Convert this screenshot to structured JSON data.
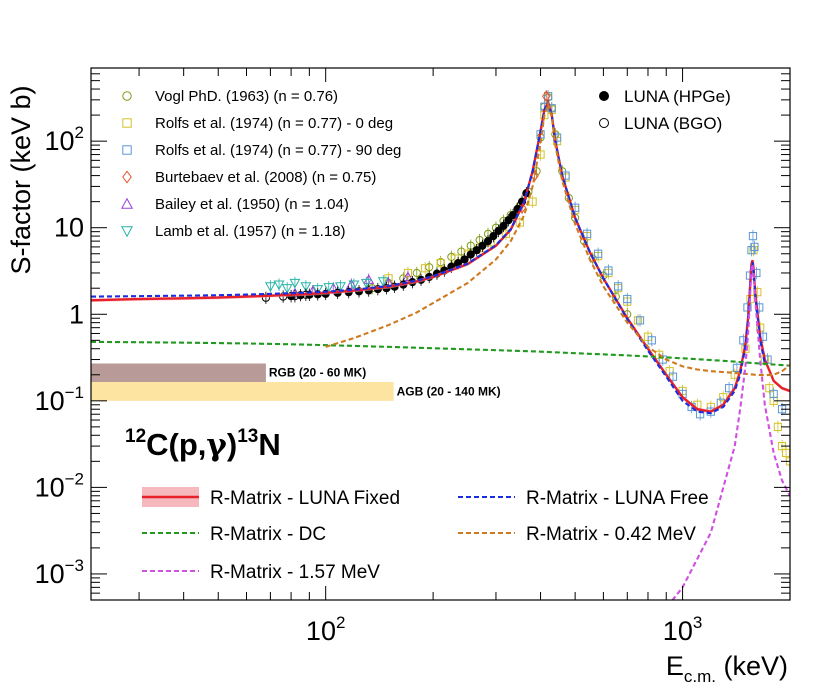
{
  "chart_data": {
    "type": "scatter",
    "title": "",
    "xlabel": "E",
    "xlabel_sub": "c.m.",
    "xlabel_unit": "(keV)",
    "ylabel": "S-factor (keV b)",
    "x_scale": "log",
    "y_scale": "log",
    "xlim": [
      22,
      2000
    ],
    "ylim": [
      0.0005,
      700
    ],
    "grid": false,
    "x_tick_labels": [
      {
        "value": 100,
        "base": "10",
        "exp": "2"
      },
      {
        "value": 1000,
        "base": "10",
        "exp": "3"
      }
    ],
    "y_tick_labels": [
      {
        "value": 0.001,
        "base": "10",
        "exp": "−3"
      },
      {
        "value": 0.01,
        "base": "10",
        "exp": "−2"
      },
      {
        "value": 0.1,
        "base": "10",
        "exp": "−1"
      },
      {
        "value": 1,
        "base": "1",
        "exp": ""
      },
      {
        "value": 10,
        "base": "10",
        "exp": ""
      },
      {
        "value": 100,
        "base": "10",
        "exp": "2"
      }
    ],
    "annotation": {
      "reaction_mass": "12",
      "reaction_left": "C(p,",
      "reaction_gamma": "γ",
      "reaction_right": ")",
      "product_mass": "13",
      "product": "N"
    },
    "bands": [
      {
        "name": "RGB (20 - 60 MK)",
        "x": [
          22,
          68
        ],
        "y": [
          0.165,
          0.27
        ],
        "color": "#b89a98"
      },
      {
        "name": "AGB (20 - 140 MK)",
        "x": [
          22,
          155
        ],
        "y": [
          0.1,
          0.165
        ],
        "color": "#fde4a1"
      }
    ],
    "legend_data": [
      {
        "label": "Vogl PhD. (1963) (n = 0.76)",
        "marker": "circle-open",
        "color": "#7d9b17"
      },
      {
        "label": "Rolfs et al. (1974) (n = 0.77) - 0 deg",
        "marker": "square-open",
        "color": "#d4c227"
      },
      {
        "label": "Rolfs et al. (1974) (n = 0.77) - 90 deg",
        "marker": "square-open",
        "color": "#5b97d6"
      },
      {
        "label": "Burtebaev et al. (2008) (n = 0.75)",
        "marker": "diamond-open",
        "color": "#e8532a"
      },
      {
        "label": "Bailey et al. (1950) (n = 1.04)",
        "marker": "triangle-up-open",
        "color": "#9a40d8"
      },
      {
        "label": "Lamb et al. (1957) (n = 1.18)",
        "marker": "triangle-down-open",
        "color": "#27b3a6"
      }
    ],
    "legend_luna": [
      {
        "label": "LUNA (HPGe)",
        "marker": "circle-filled",
        "color": "#000000"
      },
      {
        "label": "LUNA (BGO)",
        "marker": "circle-open",
        "color": "#000000"
      }
    ],
    "legend_fits": [
      {
        "label": "R-Matrix - LUNA Fixed",
        "style": "solid",
        "color": "#e8202a",
        "band_color": "#f5b8bc"
      },
      {
        "label": "R-Matrix - LUNA Free",
        "style": "dashed",
        "color": "#1a2ee0"
      },
      {
        "label": "R-Matrix - DC",
        "style": "dashed",
        "color": "#1f9a1f"
      },
      {
        "label": "R-Matrix - 0.42 MeV",
        "style": "dashed",
        "color": "#cf7a1f"
      },
      {
        "label": "R-Matrix - 1.57 MeV",
        "style": "dashed",
        "color": "#d050e0"
      }
    ],
    "series": [
      {
        "name": "R-Matrix - LUNA Fixed",
        "color": "#e8202a",
        "style": "solid",
        "x": [
          22,
          30,
          40,
          50,
          60,
          70,
          80,
          90,
          100,
          120,
          150,
          180,
          200,
          250,
          300,
          330,
          360,
          380,
          400,
          410,
          420,
          430,
          440,
          460,
          500,
          550,
          600,
          700,
          800,
          900,
          1000,
          1100,
          1200,
          1300,
          1400,
          1450,
          1500,
          1530,
          1550,
          1560,
          1570,
          1580,
          1600,
          1650,
          1700,
          1800,
          1900,
          2000
        ],
        "y": [
          1.45,
          1.5,
          1.53,
          1.56,
          1.6,
          1.64,
          1.68,
          1.72,
          1.77,
          1.88,
          2.08,
          2.4,
          2.7,
          3.8,
          6.2,
          9.5,
          20,
          45,
          130,
          230,
          280,
          200,
          100,
          40,
          13,
          5.2,
          2.6,
          0.9,
          0.4,
          0.2,
          0.11,
          0.08,
          0.075,
          0.09,
          0.14,
          0.22,
          0.45,
          1.0,
          2.5,
          3.8,
          4.2,
          3.5,
          1.7,
          0.55,
          0.3,
          0.17,
          0.14,
          0.13
        ]
      },
      {
        "name": "R-Matrix - LUNA Free",
        "color": "#1a2ee0",
        "style": "dashed",
        "x": [
          22,
          30,
          40,
          50,
          60,
          70,
          80,
          90,
          100,
          120,
          150,
          180,
          200,
          250,
          300,
          330,
          360,
          380,
          400,
          410,
          420,
          430,
          440,
          460,
          500,
          550,
          600,
          700,
          800,
          900,
          1000,
          1100,
          1200,
          1300,
          1400,
          1450,
          1500,
          1530,
          1550,
          1560,
          1570,
          1580,
          1600,
          1650,
          1700
        ],
        "y": [
          1.6,
          1.62,
          1.64,
          1.66,
          1.69,
          1.72,
          1.75,
          1.78,
          1.82,
          1.92,
          2.12,
          2.45,
          2.75,
          3.85,
          6.3,
          9.6,
          20,
          45,
          130,
          230,
          280,
          200,
          100,
          40,
          13,
          5.2,
          2.6,
          0.88,
          0.38,
          0.19,
          0.1,
          0.075,
          0.072,
          0.085,
          0.13,
          0.2,
          0.42,
          0.95,
          2.4,
          3.6,
          4.0,
          3.3,
          1.6,
          0.5,
          0.27
        ]
      },
      {
        "name": "R-Matrix - DC",
        "color": "#1f9a1f",
        "style": "dashed",
        "x": [
          22,
          30,
          40,
          60,
          80,
          100,
          150,
          200,
          300,
          400,
          500,
          700,
          1000,
          1300,
          1600,
          2000
        ],
        "y": [
          0.48,
          0.475,
          0.47,
          0.46,
          0.45,
          0.44,
          0.42,
          0.405,
          0.385,
          0.37,
          0.355,
          0.335,
          0.31,
          0.29,
          0.272,
          0.255
        ]
      },
      {
        "name": "R-Matrix - 0.42 MeV",
        "color": "#cf7a1f",
        "style": "dashed",
        "x": [
          100,
          120,
          150,
          180,
          200,
          250,
          300,
          330,
          360,
          380,
          400,
          410,
          420,
          430,
          440,
          460,
          500,
          550,
          600,
          700,
          800,
          900,
          1000,
          1100,
          1200,
          1300,
          1400,
          1500,
          1600,
          1700,
          1800,
          1900,
          2000
        ],
        "y": [
          0.42,
          0.53,
          0.75,
          1.05,
          1.35,
          2.3,
          4.3,
          7,
          14,
          30,
          95,
          200,
          270,
          190,
          90,
          35,
          11,
          4.3,
          2.1,
          0.8,
          0.42,
          0.3,
          0.25,
          0.23,
          0.22,
          0.215,
          0.21,
          0.205,
          0.2,
          0.198,
          0.2,
          0.22,
          0.26
        ]
      },
      {
        "name": "R-Matrix - 1.57 MeV",
        "color": "#d050e0",
        "style": "dashed",
        "x": [
          850,
          1000,
          1200,
          1400,
          1450,
          1500,
          1530,
          1550,
          1560,
          1570,
          1580,
          1600,
          1650,
          1700,
          1800,
          1900,
          2000
        ],
        "y": [
          0.0003,
          0.0007,
          0.003,
          0.03,
          0.08,
          0.25,
          0.7,
          2.0,
          3.3,
          3.8,
          3.2,
          1.4,
          0.3,
          0.09,
          0.025,
          0.012,
          0.008
        ]
      },
      {
        "name": "Vogl PhD. (1963) (n = 0.76)",
        "color": "#7d9b17",
        "marker": "circle-open",
        "x": [
          135,
          150,
          165,
          180,
          195,
          210,
          225,
          240,
          255,
          270,
          285,
          300,
          315,
          330,
          350,
          370,
          390,
          400,
          410,
          420,
          430,
          440,
          460,
          480,
          500,
          530,
          560,
          600,
          650,
          700
        ],
        "y": [
          2.0,
          2.3,
          2.6,
          3.0,
          3.5,
          4.0,
          4.6,
          5.3,
          6.2,
          7.2,
          8.5,
          10,
          12,
          14,
          18,
          26,
          45,
          110,
          250,
          320,
          240,
          120,
          45,
          22,
          13,
          7,
          4.4,
          2.8,
          1.6,
          1.0
        ]
      },
      {
        "name": "Rolfs et al. (1974) (n = 0.77) - 0 deg",
        "color": "#d4c227",
        "marker": "square-open",
        "x": [
          150,
          170,
          190,
          210,
          230,
          250,
          270,
          290,
          320,
          350,
          380,
          400,
          410,
          420,
          430,
          445,
          470,
          500,
          540,
          580,
          620,
          660,
          700,
          750,
          800,
          860,
          920,
          1000,
          1100,
          1200,
          1300,
          1400,
          1500,
          1550,
          1580,
          1620,
          1650,
          1700,
          1750,
          1800,
          1850,
          1900,
          1950,
          2000
        ],
        "y": [
          2.6,
          3.0,
          3.4,
          3.9,
          4.4,
          5.0,
          5.8,
          6.8,
          8.5,
          11.5,
          20,
          70,
          200,
          330,
          230,
          100,
          38,
          16,
          8.0,
          4.7,
          3.0,
          2.0,
          1.4,
          0.85,
          0.55,
          0.34,
          0.22,
          0.13,
          0.09,
          0.085,
          0.11,
          0.2,
          0.4,
          1.5,
          5.5,
          1.8,
          0.7,
          0.3,
          0.14,
          0.1,
          0.05,
          0.03,
          0.025,
          0.02
        ]
      },
      {
        "name": "Rolfs et al. (1974) (n = 0.77) - 90 deg",
        "color": "#5b97d6",
        "marker": "square-open",
        "x": [
          400,
          410,
          420,
          430,
          445,
          470,
          500,
          540,
          580,
          620,
          660,
          700,
          760,
          820,
          880,
          940,
          1000,
          1060,
          1120,
          1200,
          1280,
          1350,
          1420,
          1480,
          1520,
          1545,
          1560,
          1575,
          1590,
          1610,
          1640,
          1680,
          1730,
          1800,
          1900
        ],
        "y": [
          120,
          250,
          330,
          240,
          110,
          40,
          17,
          8.5,
          5.0,
          3.2,
          2.1,
          1.5,
          0.85,
          0.5,
          0.3,
          0.19,
          0.12,
          0.085,
          0.07,
          0.075,
          0.095,
          0.14,
          0.24,
          0.5,
          1.2,
          2.8,
          5.5,
          8,
          6,
          3,
          1.2,
          0.55,
          0.3,
          0.12,
          0.08
        ]
      },
      {
        "name": "Burtebaev et al. (2008) (n = 0.75)",
        "color": "#e8532a",
        "marker": "diamond-open",
        "x": [
          355,
          385,
          415
        ],
        "y": [
          17,
          40,
          330
        ]
      },
      {
        "name": "Bailey et al. (1950) (n = 1.04)",
        "color": "#9a40d8",
        "marker": "triangle-up-open",
        "x": [
          82,
          92,
          105,
          118,
          132,
          150,
          170
        ],
        "y": [
          1.75,
          1.85,
          2.0,
          2.2,
          2.5,
          2.3,
          2.7
        ]
      },
      {
        "name": "Lamb et al. (1957) (n = 1.18)",
        "color": "#27b3a6",
        "marker": "triangle-down-open",
        "x": [
          70,
          74,
          78,
          82,
          88,
          95,
          102,
          110,
          120,
          130,
          145
        ],
        "y": [
          2.1,
          2.2,
          2.0,
          2.3,
          2.1,
          1.95,
          2.05,
          2.1,
          2.2,
          2.3,
          2.4
        ]
      },
      {
        "name": "LUNA (HPGe)",
        "color": "#000000",
        "marker": "circle-filled",
        "x": [
          80,
          85,
          90,
          95,
          100,
          108,
          116,
          124,
          132,
          140,
          148,
          156,
          165,
          175,
          185,
          195,
          205,
          215,
          225,
          235,
          245,
          255,
          265,
          275,
          285,
          295,
          305,
          315,
          325,
          335,
          345,
          355,
          365
        ],
        "y": [
          1.62,
          1.66,
          1.68,
          1.7,
          1.72,
          1.77,
          1.8,
          1.84,
          1.88,
          1.95,
          2.0,
          2.08,
          2.2,
          2.35,
          2.5,
          2.7,
          2.95,
          3.2,
          3.55,
          3.9,
          4.3,
          4.9,
          5.5,
          6.2,
          7.0,
          8.0,
          9.2,
          10.5,
          12.2,
          14,
          16.5,
          20,
          25
        ]
      },
      {
        "name": "LUNA (BGO)",
        "color": "#000000",
        "marker": "circle-open",
        "x": [
          68,
          76,
          82,
          88
        ],
        "y": [
          1.55,
          1.6,
          1.62,
          1.68
        ]
      }
    ]
  }
}
